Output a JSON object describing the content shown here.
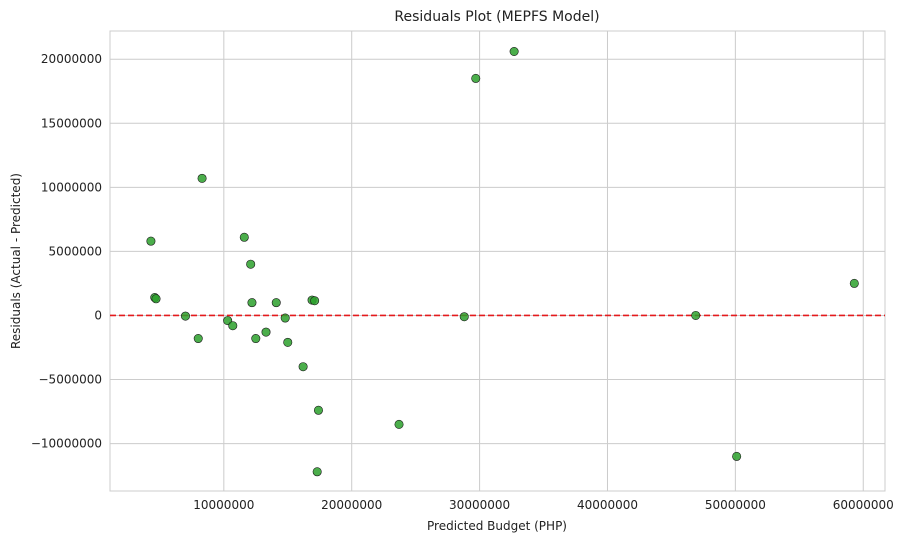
{
  "chart_data": {
    "type": "scatter",
    "title": "Residuals Plot (MEPFS Model)",
    "xlabel": "Predicted Budget (PHP)",
    "ylabel": "Residuals (Actual - Predicted)",
    "xlim": [
      1100000,
      61700000
    ],
    "ylim": [
      -13700000,
      22200000
    ],
    "x_ticks": [
      10000000,
      20000000,
      30000000,
      40000000,
      50000000,
      60000000
    ],
    "x_tick_labels": [
      "10000000",
      "20000000",
      "30000000",
      "40000000",
      "50000000",
      "60000000"
    ],
    "y_ticks": [
      -10000000,
      -5000000,
      0,
      5000000,
      10000000,
      15000000,
      20000000
    ],
    "y_tick_labels": [
      "−10000000",
      "−5000000",
      "0",
      "5000000",
      "10000000",
      "15000000",
      "20000000"
    ],
    "grid": true,
    "reference_line": {
      "y": 0,
      "color": "#e41a1c",
      "style": "dashed"
    },
    "marker_color": "#2ca02c",
    "marker_edge_color": "#1a1a1a",
    "points": [
      {
        "x": 4300000,
        "y": 5800000
      },
      {
        "x": 4600000,
        "y": 1400000
      },
      {
        "x": 4700000,
        "y": 1300000
      },
      {
        "x": 7000000,
        "y": -50000
      },
      {
        "x": 8000000,
        "y": -1800000
      },
      {
        "x": 8300000,
        "y": 10700000
      },
      {
        "x": 10300000,
        "y": -400000
      },
      {
        "x": 10700000,
        "y": -800000
      },
      {
        "x": 11600000,
        "y": 6100000
      },
      {
        "x": 12100000,
        "y": 4000000
      },
      {
        "x": 12200000,
        "y": 1000000
      },
      {
        "x": 12500000,
        "y": -1800000
      },
      {
        "x": 13300000,
        "y": -1300000
      },
      {
        "x": 14100000,
        "y": 1000000
      },
      {
        "x": 14800000,
        "y": -200000
      },
      {
        "x": 15000000,
        "y": -2100000
      },
      {
        "x": 16200000,
        "y": -4000000
      },
      {
        "x": 16900000,
        "y": 1200000
      },
      {
        "x": 17100000,
        "y": 1150000
      },
      {
        "x": 17300000,
        "y": -12200000
      },
      {
        "x": 17400000,
        "y": -7400000
      },
      {
        "x": 23700000,
        "y": -8500000
      },
      {
        "x": 28800000,
        "y": -100000
      },
      {
        "x": 29700000,
        "y": 18500000
      },
      {
        "x": 32700000,
        "y": 20600000
      },
      {
        "x": 46900000,
        "y": 0
      },
      {
        "x": 50100000,
        "y": -11000000
      },
      {
        "x": 59300000,
        "y": 2500000
      }
    ]
  }
}
